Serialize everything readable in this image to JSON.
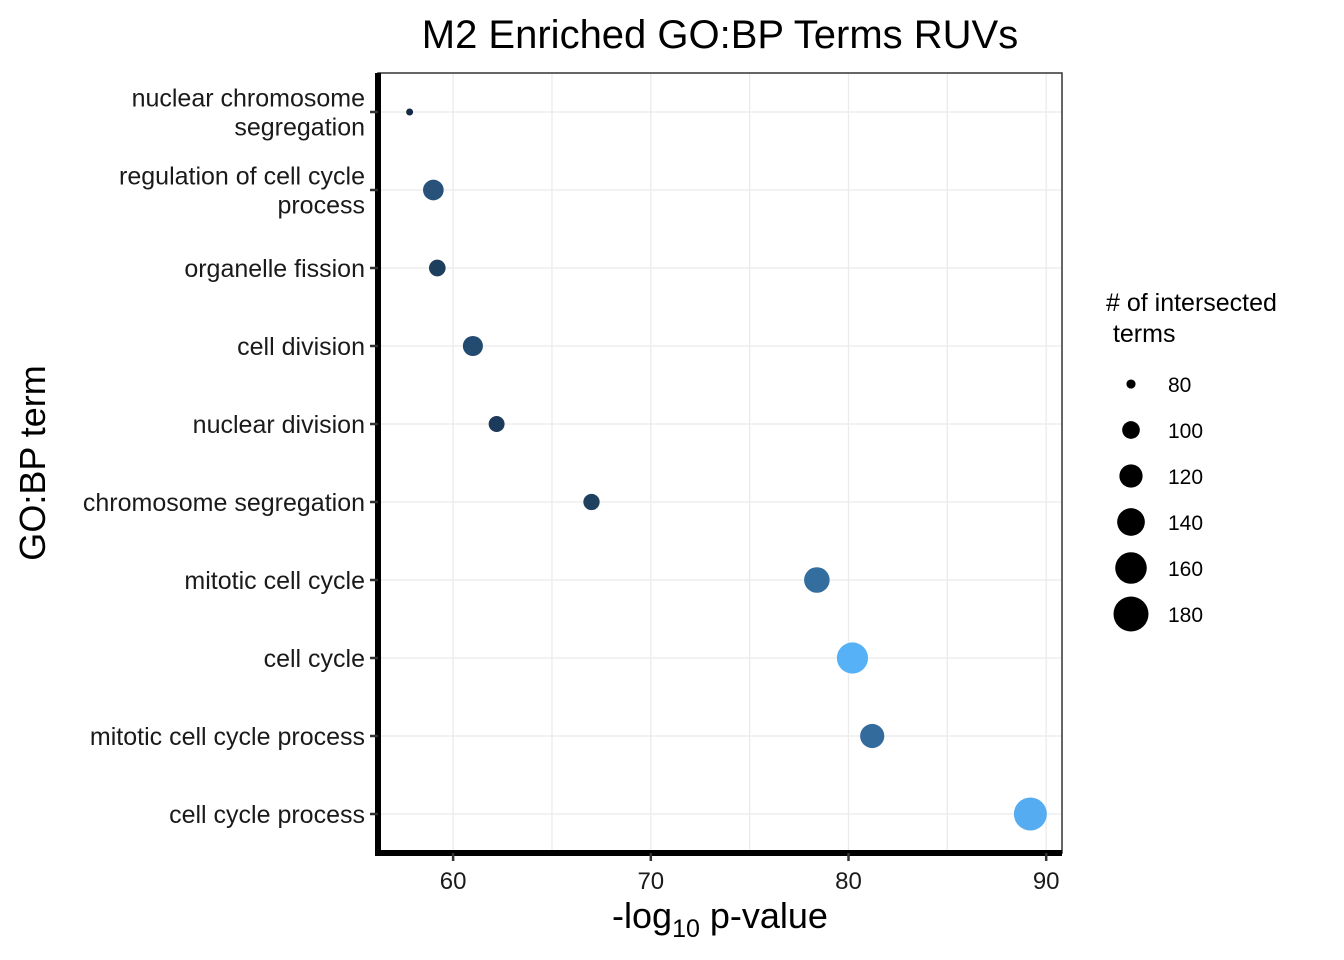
{
  "chart_data": {
    "type": "scatter",
    "title": "M2 Enriched GO:BP Terms RUVs",
    "xlabel": "-log10 p-value",
    "xlabel_parts": {
      "pre": "-log",
      "sub": "10",
      "post": " p-value"
    },
    "ylabel": "GO:BP term",
    "xlim": [
      56.2,
      90.8
    ],
    "xticks": [
      60,
      70,
      80,
      90
    ],
    "xtick_labels": [
      "60",
      "70",
      "80",
      "90"
    ],
    "grid": true,
    "legend": {
      "title_lines": [
        "# of intersected",
        " terms"
      ],
      "position": "right",
      "sizes": [
        80,
        100,
        120,
        140,
        160,
        180
      ],
      "labels": [
        "80",
        "100",
        "120",
        "140",
        "160",
        "180"
      ]
    },
    "points": [
      {
        "term_lines": [
          "nuclear chromosome",
          "segregation"
        ],
        "x": 57.8,
        "size": 77,
        "color": "#132B43"
      },
      {
        "term_lines": [
          "regulation of cell cycle",
          "process"
        ],
        "x": 59.0,
        "size": 110,
        "color": "#28527A"
      },
      {
        "term_lines": [
          "organelle fission"
        ],
        "x": 59.2,
        "size": 97,
        "color": "#1E3E5E"
      },
      {
        "term_lines": [
          "cell division"
        ],
        "x": 61.0,
        "size": 108,
        "color": "#234A70"
      },
      {
        "term_lines": [
          "nuclear division"
        ],
        "x": 62.2,
        "size": 95,
        "color": "#1C3A5A"
      },
      {
        "term_lines": [
          "chromosome segregation"
        ],
        "x": 67.0,
        "size": 96,
        "color": "#1F405F"
      },
      {
        "term_lines": [
          "mitotic cell cycle"
        ],
        "x": 78.4,
        "size": 130,
        "color": "#346E9F"
      },
      {
        "term_lines": [
          "cell cycle"
        ],
        "x": 80.2,
        "size": 158,
        "color": "#56B1F7"
      },
      {
        "term_lines": [
          "mitotic cell cycle process"
        ],
        "x": 81.2,
        "size": 124,
        "color": "#336B9C"
      },
      {
        "term_lines": [
          "cell cycle process"
        ],
        "x": 89.2,
        "size": 168,
        "color": "#55ACF0"
      }
    ]
  }
}
